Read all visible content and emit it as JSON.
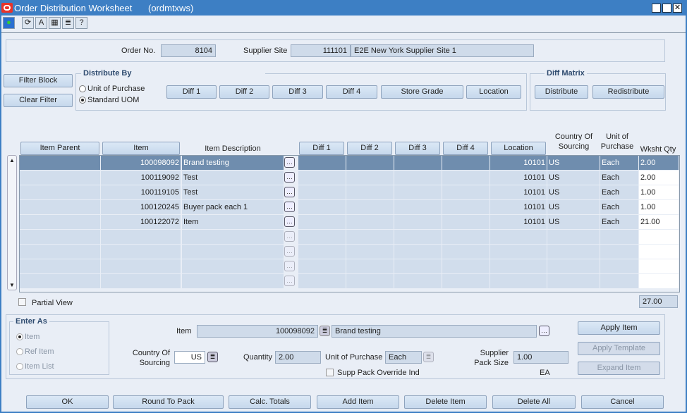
{
  "window": {
    "title": "Order Distribution Worksheet",
    "form_id": "(ordmtxws)"
  },
  "header": {
    "order_no_label": "Order No.",
    "order_no": "8104",
    "supplier_site_label": "Supplier Site",
    "supplier_site_id": "111101",
    "supplier_site_name": "E2E New York Supplier Site 1"
  },
  "filter": {
    "filter_block": "Filter Block",
    "clear_filter": "Clear Filter"
  },
  "distribute_by": {
    "title": "Distribute By",
    "options": [
      "Unit of Purchase",
      "Standard UOM"
    ],
    "selected": "Standard UOM",
    "buttons": [
      "Diff 1",
      "Diff 2",
      "Diff 3",
      "Diff 4",
      "Store Grade",
      "Location"
    ]
  },
  "diff_matrix": {
    "title": "Diff Matrix",
    "distribute": "Distribute",
    "redistribute": "Redistribute"
  },
  "table": {
    "headers": {
      "item_parent": "Item Parent",
      "item": "Item",
      "item_description": "Item Description",
      "diff1": "Diff 1",
      "diff2": "Diff 2",
      "diff3": "Diff 3",
      "diff4": "Diff 4",
      "location": "Location",
      "country_1": "Country Of",
      "country_2": "Sourcing",
      "uop_1": "Unit of",
      "uop_2": "Purchase",
      "wksht_qty": "Wksht Qty"
    },
    "rows": [
      {
        "item_parent": "",
        "item": "100098092",
        "description": "Brand testing",
        "diff1": "",
        "diff2": "",
        "diff3": "",
        "diff4": "",
        "location": "10101",
        "country": "US",
        "uop": "Each",
        "qty": "2.00"
      },
      {
        "item_parent": "",
        "item": "100119092",
        "description": "Test",
        "diff1": "",
        "diff2": "",
        "diff3": "",
        "diff4": "",
        "location": "10101",
        "country": "US",
        "uop": "Each",
        "qty": "2.00"
      },
      {
        "item_parent": "",
        "item": "100119105",
        "description": "Test",
        "diff1": "",
        "diff2": "",
        "diff3": "",
        "diff4": "",
        "location": "10101",
        "country": "US",
        "uop": "Each",
        "qty": "1.00"
      },
      {
        "item_parent": "",
        "item": "100120245",
        "description": "Buyer pack each 1",
        "diff1": "",
        "diff2": "",
        "diff3": "",
        "diff4": "",
        "location": "10101",
        "country": "US",
        "uop": "Each",
        "qty": "1.00"
      },
      {
        "item_parent": "",
        "item": "100122072",
        "description": "Item",
        "diff1": "",
        "diff2": "",
        "diff3": "",
        "diff4": "",
        "location": "10101",
        "country": "US",
        "uop": "Each",
        "qty": "21.00"
      },
      {},
      {},
      {},
      {}
    ],
    "total_qty": "27.00",
    "partial_view": "Partial View"
  },
  "enter_as": {
    "title": "Enter As",
    "options": [
      "Item",
      "Ref Item",
      "Item List"
    ],
    "selected": "Item"
  },
  "detail": {
    "item_label": "Item",
    "item": "100098092",
    "item_desc": "Brand testing",
    "country_label_1": "Country Of",
    "country_label_2": "Sourcing",
    "country": "US",
    "quantity_label": "Quantity",
    "quantity": "2.00",
    "uop_label": "Unit of Purchase",
    "uop": "Each",
    "pack_label_1": "Supplier",
    "pack_label_2": "Pack Size",
    "pack_size": "1.00",
    "pack_uom": "EA",
    "supp_pack_override": "Supp Pack Override Ind"
  },
  "side_buttons": {
    "apply_item": "Apply Item",
    "apply_template": "Apply Template",
    "expand_item": "Expand Item"
  },
  "bottom_buttons": [
    "OK",
    "Round To Pack",
    "Calc. Totals",
    "Add Item",
    "Delete Item",
    "Delete All",
    "Cancel"
  ],
  "colors": {
    "title_bar": "#3d7fc4",
    "selected_row": "#6f8dae",
    "row": "#d1ddec"
  }
}
